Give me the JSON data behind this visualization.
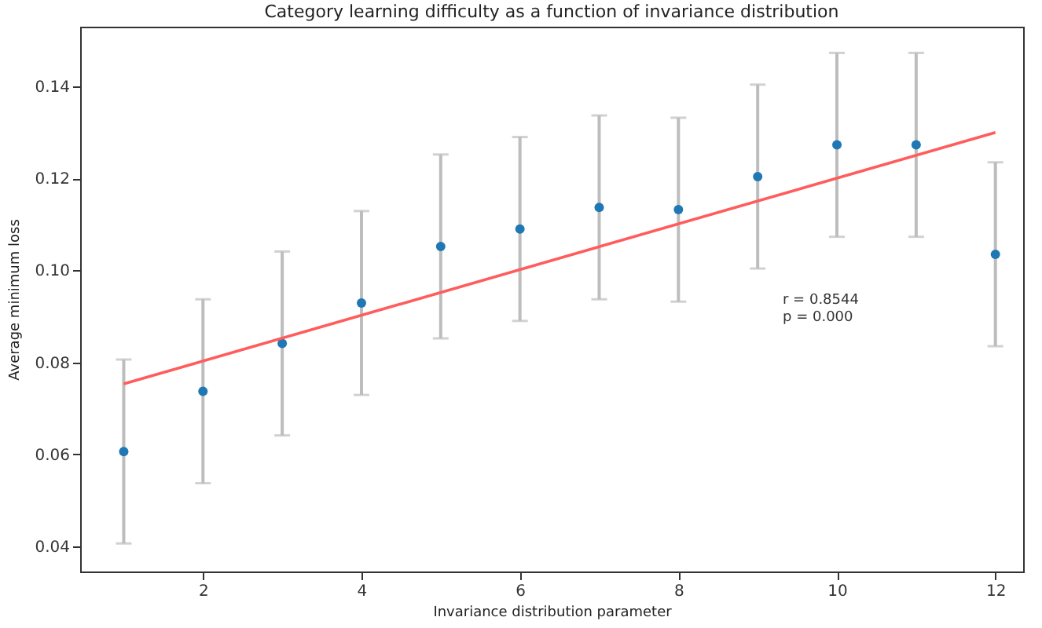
{
  "chart_data": {
    "type": "scatter",
    "title": "Category learning difficulty as a function of invariance distribution",
    "xlabel": "Invariance distribution parameter",
    "ylabel": "Average minimum loss",
    "x": [
      1,
      2,
      3,
      4,
      5,
      6,
      7,
      8,
      9,
      10,
      11,
      12
    ],
    "series": [
      {
        "color": "#1f77b4",
        "marker": "circle",
        "values": [
          0.0606,
          0.0737,
          0.0841,
          0.0929,
          0.1052,
          0.109,
          0.1137,
          0.1132,
          0.1204,
          0.1273,
          0.1273,
          0.1035
        ],
        "errors": [
          0.02,
          0.02,
          0.02,
          0.02,
          0.02,
          0.02,
          0.02,
          0.02,
          0.02,
          0.02,
          0.02,
          0.02
        ]
      },
      {
        "type": "line",
        "color": "#ff5c5c",
        "x": [
          1,
          12
        ],
        "values": [
          0.0753,
          0.13
        ]
      }
    ],
    "xlim": [
      0.45,
      12.35
    ],
    "xticks": [
      2,
      4,
      6,
      8,
      10,
      12
    ],
    "ylim": [
      0.0345,
      0.153
    ],
    "yticks": [
      0.04,
      0.06,
      0.08,
      {
        "value": 0.1,
        "label": "0.10"
      },
      0.12,
      0.14
    ],
    "annotations": [
      "r = 0.8544",
      " p = 0.000"
    ],
    "grid": false
  }
}
